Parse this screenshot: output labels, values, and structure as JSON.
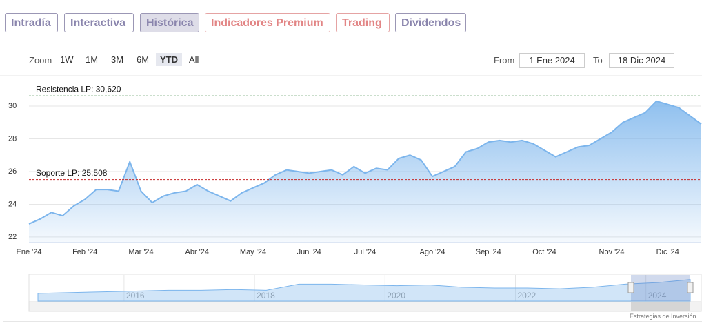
{
  "ui": {
    "tabs": [
      "Intradía",
      "Interactiva",
      "Histórica",
      "Indicadores Premium",
      "Trading",
      "Dividendos"
    ],
    "zoom_label": "Zoom",
    "zoom_buttons": [
      "1W",
      "1M",
      "3M",
      "6M",
      "YTD",
      "All"
    ],
    "from_label": "From",
    "from_value": "1 Ene 2024",
    "to_label": "To",
    "to_value": "18 Dic 2024",
    "credit": "Estrategias de Inversión"
  },
  "chart_data": {
    "type": "area",
    "categories": [
      "Ene '24",
      null,
      null,
      null,
      null,
      "Feb '24",
      null,
      null,
      null,
      null,
      "Mar '24",
      null,
      null,
      null,
      null,
      "Abr '24",
      null,
      null,
      null,
      null,
      "May '24",
      null,
      null,
      null,
      null,
      "Jun '24",
      null,
      null,
      null,
      null,
      "Jul '24",
      null,
      null,
      null,
      null,
      null,
      "Ago '24",
      null,
      null,
      null,
      null,
      "Sep '24",
      null,
      null,
      null,
      null,
      "Oct '24",
      null,
      null,
      null,
      null,
      null,
      "Nov '24",
      null,
      null,
      null,
      null,
      "Dic '24",
      null,
      null,
      null
    ],
    "series": [
      {
        "color": "#7cb5ec",
        "values": [
          22.8,
          23.1,
          23.5,
          23.3,
          23.9,
          24.3,
          24.9,
          24.9,
          24.8,
          26.6,
          24.8,
          24.1,
          24.5,
          24.7,
          24.8,
          25.2,
          24.8,
          24.5,
          24.2,
          24.7,
          25.0,
          25.3,
          25.8,
          26.1,
          26.0,
          25.9,
          26.0,
          26.1,
          25.8,
          26.3,
          25.9,
          26.2,
          26.1,
          26.8,
          27.0,
          26.7,
          25.7,
          26.0,
          26.3,
          27.2,
          27.4,
          27.8,
          27.9,
          27.8,
          27.9,
          27.7,
          27.3,
          26.9,
          27.2,
          27.5,
          27.6,
          28.0,
          28.4,
          29.0,
          29.3,
          29.6,
          30.3,
          30.1,
          29.9,
          29.4,
          28.9
        ]
      }
    ],
    "reference_lines": [
      {
        "label": "Resistencia LP: 30,620",
        "value": 30.62,
        "color": "#2e7d32"
      },
      {
        "label": "Soporte LP: 25,508",
        "value": 25.508,
        "color": "#c62828"
      }
    ],
    "ylim": [
      21.66,
      31.77
    ],
    "yticks": [
      22,
      24,
      26,
      28,
      30
    ],
    "grid": true,
    "navigator": {
      "categories": [
        null,
        null,
        null,
        "2016",
        null,
        null,
        null,
        "2018",
        null,
        null,
        null,
        "2020",
        null,
        null,
        null,
        "2022",
        null,
        null,
        null,
        "2024",
        null
      ],
      "values": [
        20,
        20.5,
        21,
        21.5,
        22,
        22,
        22.5,
        22,
        26,
        26,
        25.5,
        25,
        25.5,
        24,
        23.5,
        23.5,
        23,
        24,
        26,
        27,
        29
      ],
      "ylim": [
        15,
        32
      ]
    }
  }
}
